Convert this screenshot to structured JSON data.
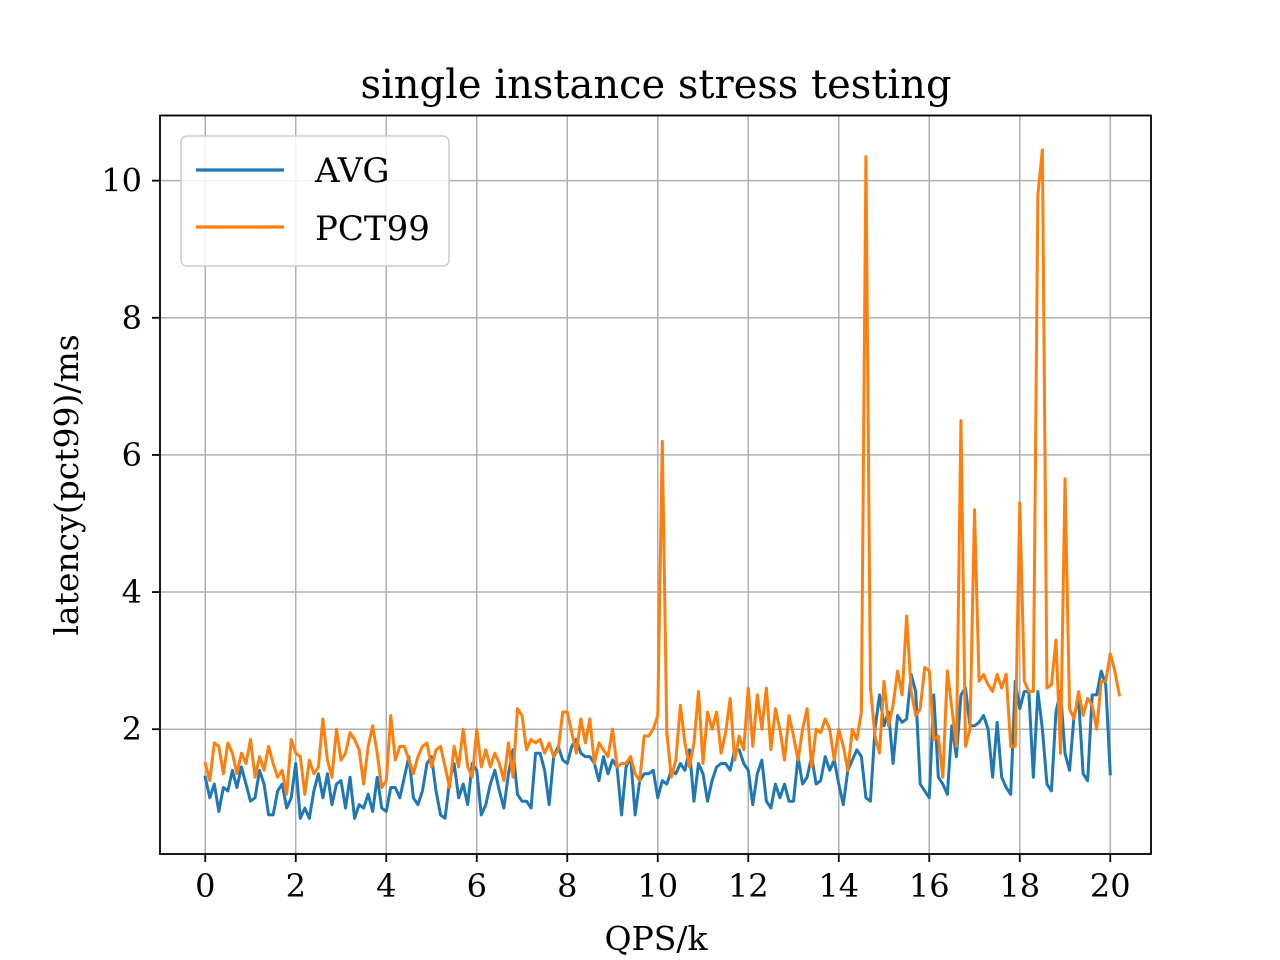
{
  "chart_data": {
    "type": "line",
    "title": "single instance stress testing",
    "xlabel": "QPS/k",
    "ylabel": "latency(pct99)/ms",
    "xlim": [
      -1,
      20.9
    ],
    "ylim": [
      0.18,
      10.95
    ],
    "xticks": [
      0,
      2,
      4,
      6,
      8,
      10,
      12,
      14,
      16,
      18,
      20
    ],
    "yticks": [
      2,
      4,
      6,
      8,
      10
    ],
    "grid": true,
    "legend_position": "upper-left",
    "x_start": 0,
    "x_step": 0.1,
    "series": [
      {
        "name": "AVG",
        "color": "#1f77b4",
        "values": [
          1.3,
          1.0,
          1.2,
          0.8,
          1.15,
          1.1,
          1.4,
          1.15,
          1.45,
          1.2,
          0.95,
          1.0,
          1.4,
          1.2,
          0.75,
          0.75,
          1.1,
          1.2,
          0.85,
          1.0,
          1.5,
          0.7,
          0.85,
          0.7,
          1.1,
          1.35,
          1.0,
          1.35,
          0.9,
          1.2,
          1.25,
          0.85,
          1.3,
          0.7,
          0.9,
          0.85,
          1.05,
          0.8,
          1.3,
          0.85,
          0.8,
          1.15,
          1.15,
          1.0,
          1.3,
          1.6,
          1.0,
          0.9,
          1.1,
          1.5,
          1.6,
          1.1,
          0.75,
          0.7,
          1.25,
          1.5,
          1.0,
          1.2,
          0.9,
          1.5,
          1.4,
          0.75,
          0.9,
          1.2,
          1.4,
          1.1,
          0.85,
          1.35,
          1.7,
          1.05,
          0.95,
          0.95,
          0.85,
          1.65,
          1.65,
          1.4,
          0.9,
          1.6,
          1.75,
          1.55,
          1.5,
          1.75,
          1.85,
          1.65,
          1.6,
          1.6,
          1.5,
          1.25,
          1.6,
          1.35,
          1.55,
          1.45,
          0.75,
          1.45,
          1.6,
          0.75,
          1.25,
          1.35,
          1.35,
          1.4,
          1.0,
          1.25,
          1.2,
          1.4,
          1.35,
          1.5,
          1.4,
          1.7,
          0.95,
          1.5,
          1.35,
          0.95,
          1.25,
          1.45,
          1.5,
          1.5,
          1.4,
          1.7,
          1.7,
          1.5,
          1.4,
          0.9,
          1.35,
          1.55,
          0.95,
          0.85,
          1.2,
          1.0,
          1.2,
          0.95,
          0.95,
          1.6,
          1.2,
          1.3,
          1.6,
          1.2,
          1.25,
          1.6,
          1.4,
          1.55,
          1.2,
          0.9,
          1.4,
          1.55,
          1.7,
          1.6,
          1.0,
          0.95,
          2.0,
          2.5,
          2.05,
          2.25,
          1.5,
          2.2,
          2.1,
          2.15,
          2.8,
          2.55,
          1.2,
          1.1,
          1.0,
          2.5,
          1.3,
          1.2,
          1.05,
          2.05,
          1.6,
          2.5,
          2.6,
          2.05,
          2.05,
          2.1,
          2.2,
          2.0,
          1.3,
          2.1,
          1.3,
          1.15,
          1.05,
          2.7,
          2.3,
          2.55,
          2.55,
          1.3,
          2.55,
          2.0,
          1.2,
          1.1,
          2.25,
          2.55,
          1.65,
          1.4,
          2.2,
          2.45,
          1.35,
          1.25,
          2.5,
          2.5,
          2.85,
          2.65,
          1.35
        ]
      },
      {
        "name": "PCT99",
        "color": "#ff7f0e",
        "values": [
          1.5,
          1.25,
          1.8,
          1.75,
          1.35,
          1.8,
          1.65,
          1.35,
          1.65,
          1.5,
          1.85,
          1.3,
          1.6,
          1.4,
          1.75,
          1.5,
          1.3,
          1.4,
          1.05,
          1.85,
          1.65,
          1.6,
          1.05,
          1.55,
          1.35,
          1.45,
          2.15,
          1.55,
          1.3,
          2.0,
          1.55,
          1.65,
          1.95,
          1.85,
          1.7,
          1.2,
          1.75,
          2.05,
          1.65,
          1.15,
          1.25,
          2.2,
          1.55,
          1.75,
          1.75,
          1.55,
          1.35,
          1.6,
          1.75,
          1.8,
          1.45,
          1.7,
          1.75,
          1.45,
          1.15,
          1.75,
          1.45,
          2.0,
          1.45,
          1.3,
          2.0,
          1.45,
          1.7,
          1.45,
          1.65,
          1.5,
          1.25,
          1.8,
          1.3,
          2.3,
          2.2,
          1.7,
          1.85,
          1.8,
          1.85,
          1.65,
          1.8,
          1.6,
          1.7,
          2.25,
          2.25,
          1.95,
          1.65,
          2.15,
          1.8,
          2.15,
          1.5,
          1.8,
          1.7,
          1.6,
          2.0,
          1.45,
          1.5,
          1.5,
          1.6,
          1.35,
          1.25,
          1.9,
          1.9,
          2.0,
          2.2,
          6.2,
          1.95,
          1.3,
          1.55,
          2.35,
          1.8,
          1.45,
          1.8,
          2.55,
          1.5,
          2.25,
          2.0,
          2.25,
          1.65,
          1.95,
          2.45,
          1.55,
          1.9,
          1.7,
          2.6,
          1.75,
          2.5,
          2.0,
          2.6,
          1.7,
          2.3,
          2.0,
          1.55,
          2.2,
          1.9,
          1.55,
          2.0,
          2.3,
          1.45,
          2.0,
          1.95,
          2.15,
          2.0,
          1.55,
          2.0,
          1.75,
          1.4,
          2.0,
          1.85,
          2.25,
          10.35,
          2.6,
          1.9,
          1.65,
          2.7,
          2.05,
          2.35,
          2.85,
          2.5,
          3.65,
          2.55,
          2.2,
          2.3,
          2.9,
          2.85,
          1.85,
          1.9,
          1.3,
          2.85,
          2.3,
          1.75,
          6.5,
          1.75,
          2.0,
          5.2,
          2.7,
          2.8,
          2.65,
          2.55,
          2.8,
          2.6,
          2.8,
          1.75,
          1.75,
          5.3,
          2.7,
          2.55,
          2.55,
          9.8,
          10.45,
          2.6,
          2.65,
          3.3,
          1.65,
          5.65,
          2.3,
          2.15,
          2.55,
          2.2,
          2.45,
          2.35,
          2.0,
          2.7,
          2.7,
          3.1,
          2.85,
          2.5
        ]
      }
    ]
  }
}
